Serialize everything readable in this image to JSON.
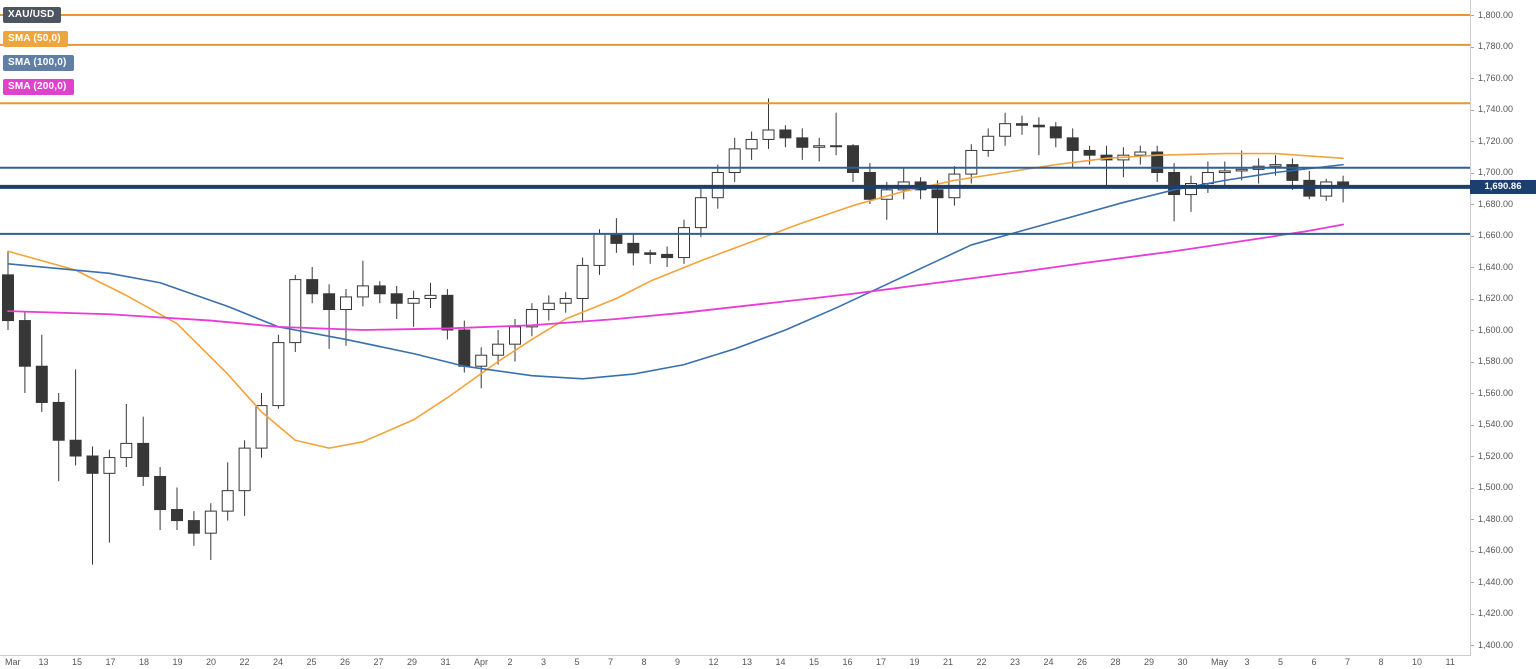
{
  "legend": {
    "symbol_label": "XAU/USD",
    "symbol_color": "#4d555e",
    "items": [
      {
        "label": "SMA (50,0)",
        "color": "#efa53e"
      },
      {
        "label": "SMA (100,0)",
        "color": "#617fa5"
      },
      {
        "label": "SMA (200,0)",
        "color": "#e141cf"
      }
    ]
  },
  "chart_data": {
    "type": "candlestick",
    "symbol": "XAU/USD",
    "indicators": [
      "SMA (50,0)",
      "SMA (100,0)",
      "SMA (200,0)"
    ],
    "current_price": 1690.86,
    "current_price_label": "1,690.86",
    "y_axis": {
      "min": 1400,
      "max": 1800,
      "step": 20,
      "labels": [
        "1,800.00",
        "1,780.00",
        "1,760.00",
        "1,740.00",
        "1,720.00",
        "1,700.00",
        "1,680.00",
        "1,660.00",
        "1,640.00",
        "1,620.00",
        "1,600.00",
        "1,580.00",
        "1,560.00",
        "1,540.00",
        "1,520.00",
        "1,500.00",
        "1,480.00",
        "1,460.00",
        "1,440.00",
        "1,420.00",
        "1,400.00"
      ]
    },
    "x_axis": {
      "labels": [
        "Mar",
        "13",
        "15",
        "17",
        "18",
        "19",
        "20",
        "22",
        "24",
        "25",
        "26",
        "27",
        "29",
        "31",
        "Apr",
        "2",
        "3",
        "5",
        "7",
        "8",
        "9",
        "12",
        "13",
        "14",
        "15",
        "16",
        "17",
        "19",
        "21",
        "22",
        "23",
        "24",
        "26",
        "28",
        "29",
        "30",
        "May",
        "3",
        "5",
        "6",
        "7",
        "8",
        "10",
        "11"
      ]
    },
    "levels": [
      {
        "price": 1800,
        "color": "level_orange",
        "width": 2
      },
      {
        "price": 1781,
        "color": "level_orange",
        "width": 2
      },
      {
        "price": 1744,
        "color": "level_orange",
        "width": 2
      },
      {
        "price": 1703,
        "color": "level_blue",
        "width": 2
      },
      {
        "price": 1690.86,
        "color": "level_navy",
        "width": 4
      },
      {
        "price": 1661,
        "color": "level_blue",
        "width": 2
      }
    ],
    "colors": {
      "up": "#ffffff",
      "down": "#373737",
      "sma50": "#f2a33c",
      "sma100": "#3a6fae",
      "sma200": "#e83bd8",
      "level_orange": "#e8962e",
      "level_blue": "#2e6094",
      "level_navy": "#1b3f6e",
      "axis_text": "#555555"
    },
    "candles": [
      [
        1635,
        1650,
        1600,
        1606
      ],
      [
        1606,
        1612,
        1560,
        1577
      ],
      [
        1577,
        1597,
        1548,
        1554
      ],
      [
        1554,
        1560,
        1504,
        1530
      ],
      [
        1530,
        1575,
        1514,
        1520
      ],
      [
        1520,
        1526,
        1451,
        1509
      ],
      [
        1509,
        1524,
        1465,
        1519
      ],
      [
        1519,
        1553,
        1513,
        1528
      ],
      [
        1528,
        1545,
        1501,
        1507
      ],
      [
        1507,
        1513,
        1473,
        1486
      ],
      [
        1486,
        1500,
        1473,
        1479
      ],
      [
        1479,
        1485,
        1463,
        1471
      ],
      [
        1471,
        1490,
        1454,
        1485
      ],
      [
        1485,
        1516,
        1479,
        1498
      ],
      [
        1498,
        1530,
        1482,
        1525
      ],
      [
        1525,
        1560,
        1519,
        1552
      ],
      [
        1552,
        1597,
        1550,
        1592
      ],
      [
        1592,
        1635,
        1586,
        1632
      ],
      [
        1632,
        1640,
        1617,
        1623
      ],
      [
        1623,
        1629,
        1588,
        1613
      ],
      [
        1613,
        1626,
        1590,
        1621
      ],
      [
        1621,
        1644,
        1615,
        1628
      ],
      [
        1628,
        1631,
        1617,
        1623
      ],
      [
        1623,
        1628,
        1607,
        1617
      ],
      [
        1617,
        1625,
        1602,
        1620
      ],
      [
        1620,
        1630,
        1614,
        1622
      ],
      [
        1622,
        1626,
        1594,
        1600
      ],
      [
        1600,
        1606,
        1573,
        1577
      ],
      [
        1577,
        1589,
        1563,
        1584
      ],
      [
        1584,
        1600,
        1578,
        1591
      ],
      [
        1591,
        1607,
        1580,
        1602
      ],
      [
        1602,
        1617,
        1596,
        1613
      ],
      [
        1613,
        1622,
        1606,
        1617
      ],
      [
        1617,
        1624,
        1611,
        1620
      ],
      [
        1620,
        1646,
        1606,
        1641
      ],
      [
        1641,
        1664,
        1635,
        1661
      ],
      [
        1661,
        1671,
        1649,
        1655
      ],
      [
        1655,
        1661,
        1641,
        1649
      ],
      [
        1649,
        1651,
        1642,
        1648
      ],
      [
        1648,
        1653,
        1640,
        1646
      ],
      [
        1646,
        1670,
        1642,
        1665
      ],
      [
        1665,
        1690,
        1659,
        1684
      ],
      [
        1684,
        1705,
        1677,
        1700
      ],
      [
        1700,
        1722,
        1694,
        1715
      ],
      [
        1715,
        1726,
        1708,
        1721
      ],
      [
        1721,
        1747,
        1715,
        1727
      ],
      [
        1727,
        1730,
        1716,
        1722
      ],
      [
        1722,
        1728,
        1708,
        1716
      ],
      [
        1716,
        1722,
        1707,
        1717
      ],
      [
        1717,
        1738,
        1711,
        1717
      ],
      [
        1717,
        1718,
        1694,
        1700
      ],
      [
        1700,
        1706,
        1680,
        1683
      ],
      [
        1683,
        1694,
        1670,
        1689
      ],
      [
        1689,
        1703,
        1683,
        1694
      ],
      [
        1694,
        1697,
        1683,
        1689
      ],
      [
        1689,
        1695,
        1661,
        1684
      ],
      [
        1684,
        1704,
        1679,
        1699
      ],
      [
        1699,
        1718,
        1693,
        1714
      ],
      [
        1714,
        1728,
        1710,
        1723
      ],
      [
        1723,
        1738,
        1717,
        1731
      ],
      [
        1731,
        1736,
        1724,
        1730
      ],
      [
        1730,
        1735,
        1711,
        1729
      ],
      [
        1729,
        1732,
        1716,
        1722
      ],
      [
        1722,
        1728,
        1703,
        1714
      ],
      [
        1714,
        1717,
        1705,
        1711
      ],
      [
        1711,
        1717,
        1691,
        1708
      ],
      [
        1708,
        1716,
        1697,
        1711
      ],
      [
        1711,
        1717,
        1705,
        1713
      ],
      [
        1713,
        1717,
        1694,
        1700
      ],
      [
        1700,
        1706,
        1669,
        1686
      ],
      [
        1686,
        1698,
        1675,
        1693
      ],
      [
        1693,
        1707,
        1687,
        1700
      ],
      [
        1700,
        1707,
        1691,
        1701
      ],
      [
        1701,
        1714,
        1695,
        1702
      ],
      [
        1702,
        1709,
        1693,
        1704
      ],
      [
        1704,
        1711,
        1698,
        1705
      ],
      [
        1705,
        1709,
        1689,
        1695
      ],
      [
        1695,
        1701,
        1683,
        1685
      ],
      [
        1685,
        1696,
        1682,
        1694
      ],
      [
        1694,
        1698,
        1681,
        1690.86
      ]
    ],
    "sma50": [
      [
        0,
        1650
      ],
      [
        4,
        1638
      ],
      [
        7,
        1622
      ],
      [
        10,
        1604
      ],
      [
        13,
        1572
      ],
      [
        15,
        1548
      ],
      [
        17,
        1530
      ],
      [
        19,
        1525
      ],
      [
        21,
        1529
      ],
      [
        24,
        1543
      ],
      [
        26,
        1557
      ],
      [
        29,
        1580
      ],
      [
        31,
        1594
      ],
      [
        33,
        1607
      ],
      [
        36,
        1620
      ],
      [
        38,
        1631
      ],
      [
        41,
        1644
      ],
      [
        44,
        1656
      ],
      [
        47,
        1668
      ],
      [
        50,
        1679
      ],
      [
        53,
        1688
      ],
      [
        56,
        1695
      ],
      [
        59,
        1700
      ],
      [
        62,
        1705
      ],
      [
        65,
        1709
      ],
      [
        68,
        1711
      ],
      [
        72,
        1712
      ],
      [
        75,
        1712
      ],
      [
        79,
        1709
      ]
    ],
    "sma100": [
      [
        0,
        1642
      ],
      [
        6,
        1636
      ],
      [
        9,
        1630
      ],
      [
        13,
        1615
      ],
      [
        16,
        1602
      ],
      [
        20,
        1594
      ],
      [
        24,
        1585
      ],
      [
        27,
        1577
      ],
      [
        31,
        1571
      ],
      [
        34,
        1569
      ],
      [
        37,
        1572
      ],
      [
        40,
        1578
      ],
      [
        43,
        1588
      ],
      [
        46,
        1600
      ],
      [
        49,
        1614
      ],
      [
        52,
        1629
      ],
      [
        55,
        1644
      ],
      [
        57,
        1654
      ],
      [
        60,
        1663
      ],
      [
        63,
        1672
      ],
      [
        66,
        1681
      ],
      [
        69,
        1689
      ],
      [
        72,
        1695
      ],
      [
        75,
        1700
      ],
      [
        79,
        1705
      ]
    ],
    "sma200": [
      [
        0,
        1612
      ],
      [
        6,
        1610
      ],
      [
        12,
        1606
      ],
      [
        16,
        1602
      ],
      [
        21,
        1600
      ],
      [
        26,
        1601
      ],
      [
        31,
        1603
      ],
      [
        36,
        1607
      ],
      [
        40,
        1611
      ],
      [
        45,
        1617
      ],
      [
        50,
        1623
      ],
      [
        55,
        1630
      ],
      [
        60,
        1637
      ],
      [
        64,
        1643
      ],
      [
        69,
        1650
      ],
      [
        74,
        1658
      ],
      [
        77,
        1663
      ],
      [
        79,
        1667
      ]
    ]
  }
}
